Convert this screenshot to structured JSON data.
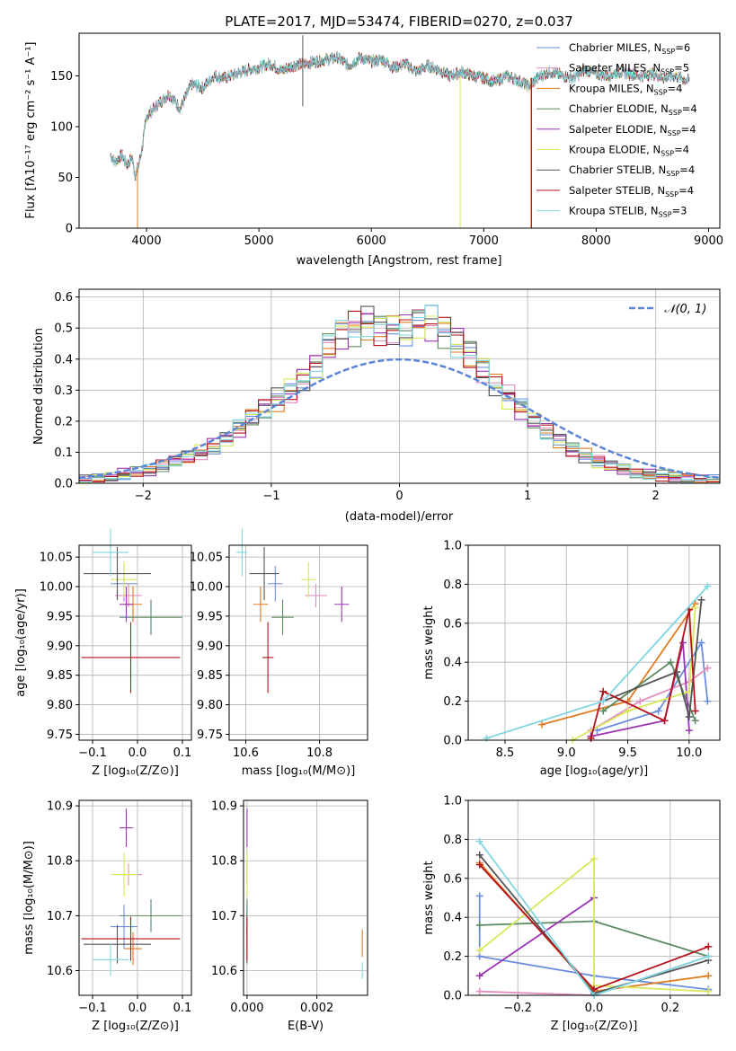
{
  "colors": [
    "#6a8fe0",
    "#e48ec0",
    "#e07b20",
    "#5c8a60",
    "#9c35b4",
    "#d8e85a",
    "#555555",
    "#b5121b",
    "#7fd6e0"
  ],
  "spectrum": {
    "title": "PLATE=2017, MJD=53474, FIBERID=0270, z=0.037",
    "xlabel": "wavelength [Angstrom, rest frame]",
    "ylabel": "Flux [fλ10⁻¹⁷ erg cm⁻² s⁻¹ A⁻¹]",
    "xlim": [
      3400,
      9100
    ],
    "ylim": [
      0,
      192
    ],
    "xticks": [
      4000,
      5000,
      6000,
      7000,
      8000,
      9000
    ],
    "yticks": [
      0,
      50,
      100,
      150
    ],
    "legend": [
      {
        "name": "Chabrier MILES",
        "n": "6"
      },
      {
        "name": "Salpeter MILES",
        "n": "5"
      },
      {
        "name": "Kroupa MILES",
        "n": "4"
      },
      {
        "name": "Chabrier ELODIE",
        "n": "4"
      },
      {
        "name": "Salpeter ELODIE",
        "n": "4"
      },
      {
        "name": "Kroupa ELODIE",
        "n": "4"
      },
      {
        "name": "Chabrier STELIB",
        "n": "4"
      },
      {
        "name": "Salpeter STELIB",
        "n": "4"
      },
      {
        "name": "Kroupa STELIB",
        "n": "3"
      }
    ]
  },
  "residuals": {
    "xlabel": "(data-model)/error",
    "ylabel": "Normed distribution",
    "xlim": [
      -2.5,
      2.5
    ],
    "ylim": [
      0,
      0.625
    ],
    "xticks": [
      -2,
      -1,
      0,
      1,
      2
    ],
    "yticks": [
      0.0,
      0.1,
      0.2,
      0.3,
      0.4,
      0.5,
      0.6
    ],
    "legend": "𝒩(0, 1)"
  },
  "chart_data": [
    {
      "type": "line",
      "title": "PLATE=2017, MJD=53474, FIBERID=0270, z=0.037",
      "xlabel": "wavelength [Angstrom, rest frame]",
      "ylabel": "Flux [fλ10⁻¹⁷ erg cm⁻² s⁻¹ A⁻¹]",
      "x": [
        3680,
        3720,
        3780,
        3830,
        3870,
        3900,
        3930,
        3960,
        4000,
        4100,
        4200,
        4300,
        4400,
        4500,
        4600,
        4700,
        4800,
        4900,
        5000,
        5100,
        5200,
        5300,
        5400,
        5500,
        5600,
        5700,
        5800,
        5900,
        6000,
        6100,
        6200,
        6300,
        6400,
        6500,
        6600,
        6700,
        6800,
        6900,
        7000,
        7100,
        7200,
        7300,
        7400,
        7500,
        7600,
        7700,
        7800,
        7900,
        8000,
        8100,
        8200,
        8300,
        8400,
        8500,
        8600,
        8700,
        8800
      ],
      "y": [
        72,
        65,
        72,
        62,
        70,
        52,
        62,
        78,
        110,
        122,
        132,
        118,
        142,
        138,
        150,
        148,
        152,
        156,
        158,
        162,
        155,
        160,
        162,
        164,
        166,
        168,
        160,
        168,
        164,
        166,
        158,
        162,
        154,
        160,
        156,
        150,
        154,
        150,
        148,
        144,
        150,
        146,
        140,
        150,
        154,
        150,
        148,
        156,
        152,
        150,
        154,
        152,
        150,
        152,
        148,
        150,
        146
      ],
      "ylim": [
        0,
        192
      ],
      "xlim": [
        3400,
        9100
      ]
    },
    {
      "type": "bar",
      "xlabel": "(data-model)/error",
      "ylabel": "Normed distribution",
      "x": [
        -2.45,
        -2.35,
        -2.25,
        -2.15,
        -2.05,
        -1.95,
        -1.85,
        -1.75,
        -1.65,
        -1.55,
        -1.45,
        -1.35,
        -1.25,
        -1.15,
        -1.05,
        -0.95,
        -0.85,
        -0.75,
        -0.65,
        -0.55,
        -0.45,
        -0.35,
        -0.25,
        -0.15,
        -0.05,
        0.05,
        0.15,
        0.25,
        0.35,
        0.45,
        0.55,
        0.65,
        0.75,
        0.85,
        0.95,
        1.05,
        1.15,
        1.25,
        1.35,
        1.45,
        1.55,
        1.65,
        1.75,
        1.85,
        1.95,
        2.05,
        2.15,
        2.25,
        2.35,
        2.45
      ],
      "values": [
        0.01,
        0.015,
        0.02,
        0.03,
        0.035,
        0.04,
        0.055,
        0.07,
        0.085,
        0.1,
        0.12,
        0.145,
        0.175,
        0.21,
        0.24,
        0.27,
        0.3,
        0.34,
        0.38,
        0.44,
        0.48,
        0.5,
        0.52,
        0.5,
        0.5,
        0.5,
        0.52,
        0.52,
        0.49,
        0.46,
        0.42,
        0.37,
        0.32,
        0.28,
        0.24,
        0.2,
        0.17,
        0.14,
        0.11,
        0.09,
        0.07,
        0.055,
        0.045,
        0.035,
        0.03,
        0.025,
        0.02,
        0.015,
        0.012,
        0.01
      ],
      "ylim": [
        0,
        0.625
      ],
      "xlim": [
        -2.5,
        2.5
      ]
    },
    {
      "type": "scatter",
      "xlabel": "Z [log₁₀(Z/Z⊙)]",
      "ylabel": "age  [log₁₀(age/yr)]",
      "xlim": [
        -0.13,
        0.12
      ],
      "ylim": [
        9.74,
        10.07
      ],
      "points": [
        {
          "x": -0.03,
          "y": 10.005,
          "xerr": 0.03,
          "yerr": 0.03
        },
        {
          "x": -0.02,
          "y": 9.985,
          "xerr": 0.03,
          "yerr": 0.02
        },
        {
          "x": -0.01,
          "y": 9.97,
          "xerr": 0.02,
          "yerr": 0.03
        },
        {
          "x": 0.03,
          "y": 9.948,
          "xerr": 0.07,
          "yerr": 0.03
        },
        {
          "x": -0.025,
          "y": 9.97,
          "xerr": 0.015,
          "yerr": 0.03
        },
        {
          "x": -0.03,
          "y": 10.012,
          "xerr": 0.03,
          "yerr": 0.03
        },
        {
          "x": -0.045,
          "y": 10.022,
          "xerr": 0.075,
          "yerr": 0.045
        },
        {
          "x": -0.015,
          "y": 9.88,
          "xerr": 0.11,
          "yerr": 0.06
        },
        {
          "x": -0.06,
          "y": 10.058,
          "xerr": 0.04,
          "yerr": 0.04
        }
      ]
    },
    {
      "type": "scatter",
      "xlabel": "mass [log₁₀(M/M⊙)]",
      "ylabel": "",
      "xlim": [
        10.555,
        10.93
      ],
      "ylim": [
        9.74,
        10.07
      ],
      "points": [
        {
          "x": 10.68,
          "y": 10.005,
          "xerr": 0.02,
          "yerr": 0.03
        },
        {
          "x": 10.79,
          "y": 9.985,
          "xerr": 0.03,
          "yerr": 0.02
        },
        {
          "x": 10.64,
          "y": 9.97,
          "xerr": 0.02,
          "yerr": 0.03
        },
        {
          "x": 10.7,
          "y": 9.948,
          "xerr": 0.03,
          "yerr": 0.03
        },
        {
          "x": 10.86,
          "y": 9.97,
          "xerr": 0.02,
          "yerr": 0.03
        },
        {
          "x": 10.77,
          "y": 10.012,
          "xerr": 0.02,
          "yerr": 0.03
        },
        {
          "x": 10.65,
          "y": 10.022,
          "xerr": 0.04,
          "yerr": 0.045
        },
        {
          "x": 10.66,
          "y": 9.88,
          "xerr": 0.015,
          "yerr": 0.06
        },
        {
          "x": 10.59,
          "y": 10.058,
          "xerr": 0.015,
          "yerr": 0.04
        }
      ]
    },
    {
      "type": "line",
      "xlabel": "age  [log₁₀(age/yr)]",
      "ylabel": "mass weight",
      "xlim": [
        8.2,
        10.25
      ],
      "ylim": [
        0,
        1
      ],
      "series": [
        {
          "x": [
            9.25,
            9.75,
            10.1,
            10.15
          ],
          "y": [
            0.05,
            0.15,
            0.5,
            0.2
          ]
        },
        {
          "x": [
            9.2,
            9.6,
            10.0,
            10.15
          ],
          "y": [
            0.05,
            0.2,
            0.3,
            0.37
          ]
        },
        {
          "x": [
            8.8,
            9.5,
            10.05
          ],
          "y": [
            0.08,
            0.2,
            0.7
          ]
        },
        {
          "x": [
            9.3,
            9.85,
            10.05
          ],
          "y": [
            0.15,
            0.4,
            0.1
          ]
        },
        {
          "x": [
            9.2,
            9.8,
            9.95,
            10.0
          ],
          "y": [
            0.02,
            0.1,
            0.5,
            0.05
          ]
        },
        {
          "x": [
            9.05,
            9.5,
            10.0,
            10.05
          ],
          "y": [
            0.0,
            0.15,
            0.25,
            0.68
          ]
        },
        {
          "x": [
            9.3,
            9.9,
            10.0,
            10.1
          ],
          "y": [
            0.2,
            0.35,
            0.12,
            0.72
          ]
        },
        {
          "x": [
            9.2,
            9.3,
            9.8,
            10.0,
            10.05
          ],
          "y": [
            0.01,
            0.25,
            0.1,
            0.67,
            0.15
          ]
        },
        {
          "x": [
            8.35,
            9.3,
            10.15
          ],
          "y": [
            0.01,
            0.2,
            0.79
          ]
        }
      ]
    },
    {
      "type": "scatter",
      "xlabel": "Z [log₁₀(Z/Z⊙)]",
      "ylabel": "mass [log₁₀(M/M⊙)]",
      "xlim": [
        -0.13,
        0.12
      ],
      "ylim": [
        10.555,
        10.91
      ],
      "points": [
        {
          "x": -0.03,
          "y": 10.68,
          "xerr": 0.03,
          "yerr": 0.04
        },
        {
          "x": -0.02,
          "y": 10.775,
          "xerr": 0.03,
          "yerr": 0.02
        },
        {
          "x": -0.01,
          "y": 10.64,
          "xerr": 0.02,
          "yerr": 0.03
        },
        {
          "x": 0.03,
          "y": 10.7,
          "xerr": 0.07,
          "yerr": 0.03
        },
        {
          "x": -0.025,
          "y": 10.86,
          "xerr": 0.015,
          "yerr": 0.035
        },
        {
          "x": -0.03,
          "y": 10.775,
          "xerr": 0.03,
          "yerr": 0.04
        },
        {
          "x": -0.045,
          "y": 10.648,
          "xerr": 0.075,
          "yerr": 0.035
        },
        {
          "x": -0.015,
          "y": 10.658,
          "xerr": 0.11,
          "yerr": 0.04
        },
        {
          "x": -0.06,
          "y": 10.62,
          "xerr": 0.04,
          "yerr": 0.03
        }
      ]
    },
    {
      "type": "scatter",
      "xlabel": "E(B-V)",
      "ylabel": "",
      "xlim": [
        -0.0001,
        0.00345
      ],
      "ylim": [
        10.555,
        10.91
      ],
      "points": [
        {
          "x": 0.0,
          "y": 10.68,
          "yerr": 0.04
        },
        {
          "x": 0.0,
          "y": 10.775,
          "yerr": 0.02
        },
        {
          "x": 0.0033,
          "y": 10.65,
          "yerr": 0.025
        },
        {
          "x": 0.0,
          "y": 10.7,
          "yerr": 0.03
        },
        {
          "x": 0.0,
          "y": 10.86,
          "yerr": 0.035
        },
        {
          "x": 0.0,
          "y": 10.775,
          "yerr": 0.04
        },
        {
          "x": 0.0,
          "y": 10.648,
          "yerr": 0.035
        },
        {
          "x": 0.0,
          "y": 10.658,
          "yerr": 0.04
        },
        {
          "x": 0.0033,
          "y": 10.6,
          "yerr": 0.015
        }
      ]
    },
    {
      "type": "line",
      "xlabel": "Z [log₁₀(Z/Z⊙)]",
      "ylabel": "mass weight",
      "xlim": [
        -0.33,
        0.33
      ],
      "ylim": [
        0,
        1
      ],
      "series": [
        {
          "x": [
            -0.3,
            -0.3,
            0.0,
            0.3
          ],
          "y": [
            0.51,
            0.2,
            0.1,
            0.03
          ]
        },
        {
          "x": [
            -0.3,
            0.0,
            0.3
          ],
          "y": [
            0.02,
            0.0,
            0.2
          ]
        },
        {
          "x": [
            -0.3,
            0.0,
            0.3
          ],
          "y": [
            0.68,
            0.02,
            0.1
          ]
        },
        {
          "x": [
            -0.3,
            0.0,
            0.3
          ],
          "y": [
            0.36,
            0.38,
            0.2
          ]
        },
        {
          "x": [
            -0.3,
            0.0
          ],
          "y": [
            0.1,
            0.5
          ]
        },
        {
          "x": [
            -0.3,
            0.0,
            0.0,
            0.3
          ],
          "y": [
            0.23,
            0.7,
            0.05,
            0.02
          ]
        },
        {
          "x": [
            -0.3,
            0.0,
            0.3
          ],
          "y": [
            0.72,
            0.01,
            0.18
          ]
        },
        {
          "x": [
            -0.3,
            0.0,
            0.3
          ],
          "y": [
            0.67,
            0.03,
            0.25
          ]
        },
        {
          "x": [
            -0.3,
            0.0,
            0.3
          ],
          "y": [
            0.79,
            0.0,
            0.2
          ]
        }
      ]
    }
  ],
  "panels": {
    "p3": {
      "xlabel": "Z [log₁₀(Z/Z⊙)]",
      "ylabel": "age  [log₁₀(age/yr)]",
      "xticks": [
        "−0.1",
        "0.0",
        "0.1"
      ],
      "yticks": [
        "9.75",
        "9.80",
        "9.85",
        "9.90",
        "9.95",
        "10.00",
        "10.05"
      ]
    },
    "p4": {
      "xlabel": "mass [log₁₀(M/M⊙)]",
      "xticks": [
        "10.6",
        "10.8"
      ],
      "yticks": [
        "9.75",
        "9.80",
        "9.85",
        "9.90",
        "9.95",
        "10.00",
        "10.05"
      ]
    },
    "p5": {
      "xlabel": "age  [log₁₀(age/yr)]",
      "ylabel": "mass weight",
      "xticks": [
        "8.5",
        "9.0",
        "9.5",
        "10.0"
      ],
      "yticks": [
        "0.0",
        "0.2",
        "0.4",
        "0.6",
        "0.8",
        "1.0"
      ]
    },
    "p6": {
      "xlabel": "Z [log₁₀(Z/Z⊙)]",
      "ylabel": "mass [log₁₀(M/M⊙)]",
      "xticks": [
        "−0.1",
        "0.0",
        "0.1"
      ],
      "yticks": [
        "10.6",
        "10.7",
        "10.8",
        "10.9"
      ]
    },
    "p7": {
      "xlabel": "E(B-V)",
      "xticks": [
        "0.000",
        "0.002"
      ],
      "yticks": [
        "10.6",
        "10.7",
        "10.8",
        "10.9"
      ]
    },
    "p8": {
      "xlabel": "Z [log₁₀(Z/Z⊙)]",
      "ylabel": "mass weight",
      "xticks": [
        "−0.2",
        "0.0",
        "0.2"
      ],
      "yticks": [
        "0.0",
        "0.2",
        "0.4",
        "0.6",
        "0.8",
        "1.0"
      ]
    }
  }
}
